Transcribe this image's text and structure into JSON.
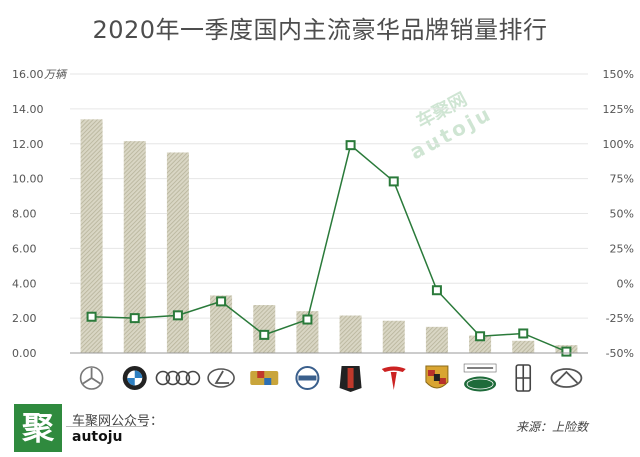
{
  "title": "2020年一季度国内主流豪华品牌销量排行",
  "y_unit": "万辆",
  "watermark": {
    "line1": "车聚网",
    "line2": "autoju"
  },
  "footer": {
    "logo_char": "聚",
    "account_label": "车聚网公众号：",
    "account_id": "autoju",
    "source": "来源：上险数"
  },
  "colors": {
    "bar_fill": "#b7b39a",
    "line": "#2a7a3a",
    "marker_fill": "#ffffff",
    "grid": "#e6e6e6",
    "logo_bg": "#2f8a3e"
  },
  "brand_icons": [
    "mercedes-benz-logo",
    "bmw-logo",
    "audi-logo",
    "lexus-logo",
    "cadillac-logo",
    "volvo-logo",
    "hongqi-logo",
    "tesla-logo",
    "porsche-logo",
    "jaguar-land-rover-logo",
    "lincoln-logo",
    "infiniti-logo"
  ],
  "chart_data": {
    "type": "bar",
    "categories": [
      "Mercedes-Benz",
      "BMW",
      "Audi",
      "Lexus",
      "Cadillac",
      "Volvo",
      "Hongqi",
      "Tesla",
      "Porsche",
      "Jaguar Land Rover",
      "Lincoln",
      "Infiniti"
    ],
    "series": [
      {
        "type": "bar",
        "axis": "left",
        "values": [
          13.4,
          12.15,
          11.5,
          3.3,
          2.75,
          2.4,
          2.15,
          1.85,
          1.5,
          1.0,
          0.7,
          0.45
        ]
      },
      {
        "type": "line",
        "axis": "right",
        "values": [
          -24,
          -25,
          -23,
          -13,
          -37,
          -26,
          99,
          73,
          -5,
          -38,
          -36,
          -49
        ]
      }
    ],
    "y_left": {
      "ylim": [
        0,
        16
      ],
      "ticks": [
        "0.00",
        "2.00",
        "4.00",
        "6.00",
        "8.00",
        "10.00",
        "12.00",
        "14.00",
        "16.00"
      ],
      "unit": "万辆"
    },
    "y_right": {
      "ylim": [
        -50,
        150
      ],
      "ticks": [
        "-50%",
        "-25%",
        "0%",
        "25%",
        "50%",
        "75%",
        "100%",
        "125%",
        "150%"
      ]
    },
    "grid": true,
    "legend": "none"
  }
}
